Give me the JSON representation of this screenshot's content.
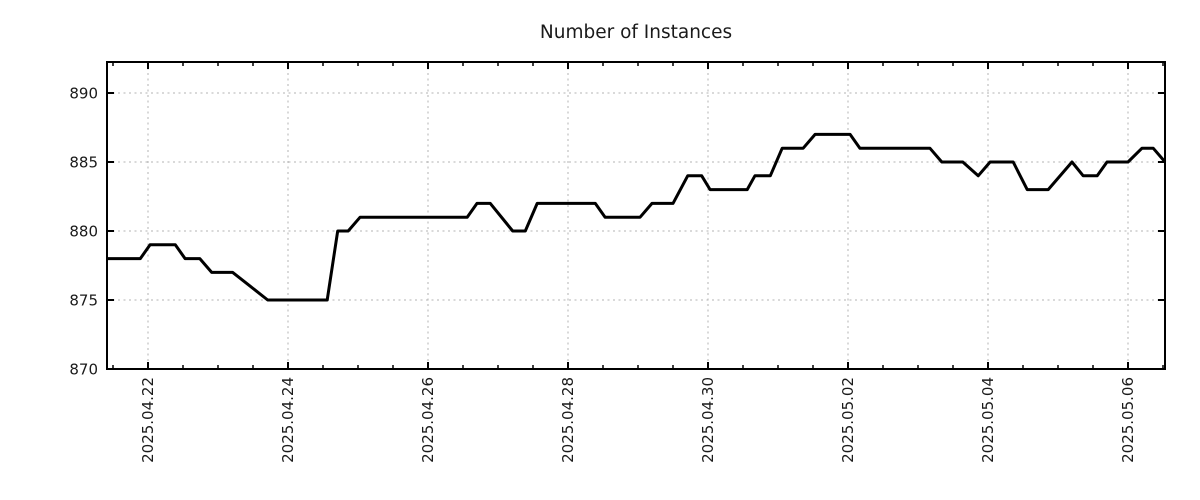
{
  "title": "Number of Instances",
  "chart_data": {
    "type": "line",
    "title": "Number of Instances",
    "xlabel": "",
    "ylabel": "",
    "legend": "none",
    "grid": "dotted, both axes",
    "line_color": "#000000",
    "grid_color": "#b3b3b3",
    "axis_color": "#000000",
    "text_color": "#1a1a1a",
    "background_color": "#ffffff",
    "y_ticks": [
      870,
      875,
      880,
      885,
      890
    ],
    "ylim": [
      870,
      892.2
    ],
    "x_unit": "days since 2025-04-22",
    "x_tick_days": [
      0,
      2,
      4,
      6,
      8,
      10,
      12,
      14
    ],
    "x_tick_labels": [
      "2025.04.22",
      "2025.04.24",
      "2025.04.26",
      "2025.04.28",
      "2025.04.30",
      "2025.05.02",
      "2025.05.04",
      "2025.05.06"
    ],
    "x_minor_tick_step_days": 0.5,
    "xlim_days": [
      -0.59,
      14.53
    ],
    "points": [
      [
        -0.59,
        878
      ],
      [
        -0.11,
        878
      ],
      [
        0.03,
        879
      ],
      [
        0.39,
        879
      ],
      [
        0.53,
        878
      ],
      [
        0.74,
        878
      ],
      [
        0.91,
        877
      ],
      [
        1.21,
        877
      ],
      [
        1.46,
        876
      ],
      [
        1.71,
        875
      ],
      [
        2.56,
        875
      ],
      [
        2.71,
        880
      ],
      [
        2.86,
        880
      ],
      [
        3.03,
        881
      ],
      [
        4.56,
        881
      ],
      [
        4.7,
        882
      ],
      [
        4.89,
        882
      ],
      [
        5.21,
        880
      ],
      [
        5.39,
        880
      ],
      [
        5.56,
        882
      ],
      [
        6.39,
        882
      ],
      [
        6.53,
        881
      ],
      [
        7.03,
        881
      ],
      [
        7.2,
        882
      ],
      [
        7.5,
        882
      ],
      [
        7.71,
        884
      ],
      [
        7.91,
        884
      ],
      [
        8.03,
        883
      ],
      [
        8.56,
        883
      ],
      [
        8.67,
        884
      ],
      [
        8.89,
        884
      ],
      [
        9.06,
        886
      ],
      [
        9.36,
        886
      ],
      [
        9.53,
        887
      ],
      [
        10.03,
        887
      ],
      [
        10.17,
        886
      ],
      [
        11.17,
        886
      ],
      [
        11.34,
        885
      ],
      [
        11.64,
        885
      ],
      [
        11.86,
        884
      ],
      [
        12.03,
        885
      ],
      [
        12.36,
        885
      ],
      [
        12.56,
        883
      ],
      [
        12.86,
        883
      ],
      [
        13.2,
        885
      ],
      [
        13.36,
        884
      ],
      [
        13.56,
        884
      ],
      [
        13.7,
        885
      ],
      [
        14.0,
        885
      ],
      [
        14.2,
        886
      ],
      [
        14.36,
        886
      ],
      [
        14.53,
        885
      ]
    ]
  }
}
